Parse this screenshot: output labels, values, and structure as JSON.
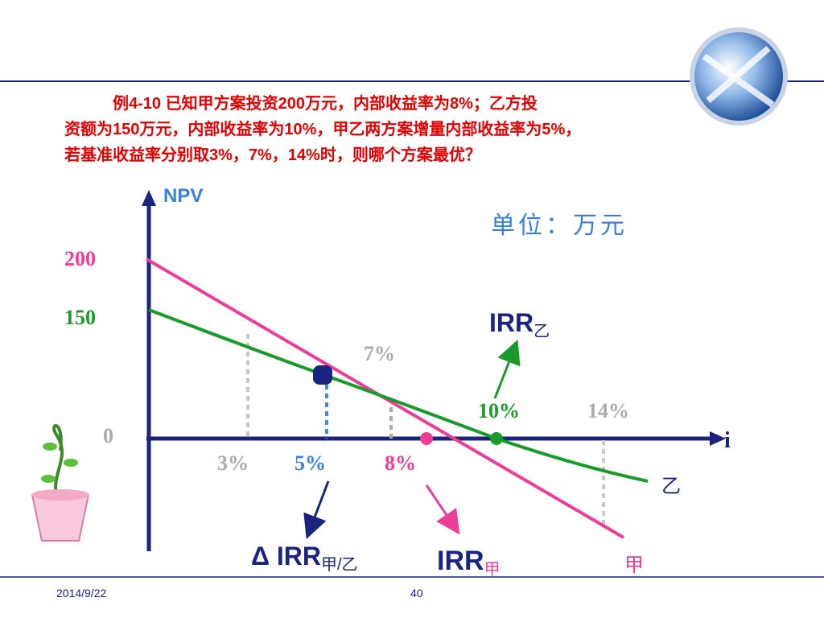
{
  "problem": {
    "lines": [
      "例4-10  已知甲方案投资200万元，内部收益率为8%；乙方投",
      "资额为150万元，内部收益率为10%，甲乙两方案增量内部收益率为5%，",
      "若基准收益率分别取3%，7%，14%时，则哪个方案最优？"
    ]
  },
  "unit": "单位：万元",
  "axes": {
    "y_label": "NPV",
    "x_label": "i",
    "y_values": [
      "200",
      "150",
      "0"
    ]
  },
  "rates": {
    "r3": "3%",
    "r5": "5%",
    "r7": "7%",
    "r8": "8%",
    "r10": "10%",
    "r14": "14%"
  },
  "irr_b": {
    "main": "IRR",
    "sub": "乙"
  },
  "irr_a": {
    "main": "IRR",
    "sub": "甲"
  },
  "delta_irr": {
    "main": "Δ IRR",
    "sub": "甲/乙"
  },
  "curves": {
    "a": "甲",
    "b": "乙"
  },
  "footer": {
    "date": "2014/9/22",
    "page": "40"
  }
}
